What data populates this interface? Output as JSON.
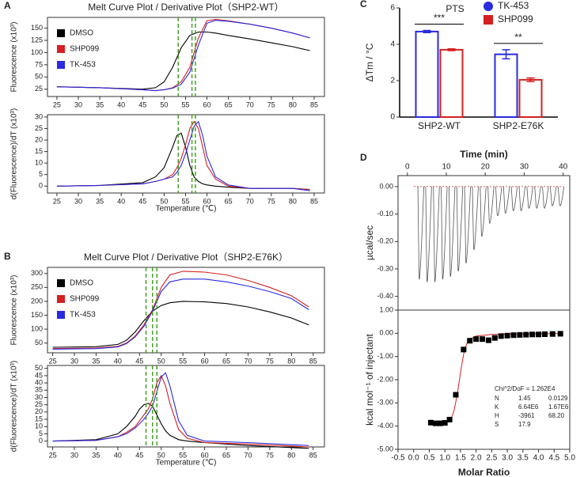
{
  "chart_data": [
    {
      "type": "line",
      "panel": "A",
      "title": "Melt Curve Plot / Derivative Plot（SHP2-WT）",
      "ylabel": "Fluorescence (x10³)",
      "frame": "box",
      "x": [
        25,
        35,
        45,
        48,
        50,
        52,
        54,
        56,
        58,
        60,
        62,
        65,
        70,
        75,
        80,
        84
      ],
      "series": [
        {
          "name": "DMSO",
          "color": "#000000",
          "values": [
            30,
            28,
            25,
            28,
            40,
            70,
            110,
            135,
            142,
            142,
            140,
            135,
            128,
            120,
            112,
            104
          ]
        },
        {
          "name": "SHP099",
          "color": "#d42020",
          "values": [
            30,
            28,
            24,
            22,
            24,
            28,
            40,
            70,
            130,
            165,
            168,
            165,
            158,
            150,
            140,
            130
          ]
        },
        {
          "name": "TK-453",
          "color": "#2a2ae0",
          "values": [
            30,
            28,
            24,
            22,
            24,
            27,
            35,
            60,
            115,
            160,
            166,
            164,
            158,
            150,
            140,
            130
          ]
        }
      ],
      "vlines": [
        53.3,
        56.5,
        57.3
      ],
      "vline_color": "#3a9a1a",
      "xlim": [
        22.8,
        87.4
      ],
      "xticks": [
        25,
        30,
        35,
        40,
        45,
        50,
        55,
        60,
        65,
        70,
        75,
        80,
        85
      ],
      "ylim": [
        10,
        172
      ],
      "yticks": [
        25,
        50,
        75,
        100,
        125,
        150
      ]
    },
    {
      "type": "line",
      "ylabel": "d(Fluorescence)/dT (x10³)",
      "xlabel": "Temperature (℃)",
      "frame": "box",
      "x": [
        25,
        35,
        45,
        48,
        50,
        52,
        53,
        54,
        55,
        56,
        57,
        58,
        59,
        60,
        62,
        65,
        70,
        80,
        84
      ],
      "series": [
        {
          "color": "#000000",
          "values": [
            0,
            0.3,
            1.5,
            4,
            8,
            17,
            22,
            23,
            17,
            9,
            4,
            2,
            1,
            0.5,
            0,
            -0.5,
            -1,
            -1,
            -1.5
          ]
        },
        {
          "color": "#d42020",
          "values": [
            0,
            0.3,
            1,
            2,
            3,
            5,
            8,
            12,
            18,
            25,
            28,
            25,
            17,
            9,
            3,
            0,
            -1,
            -1,
            -1.5
          ]
        },
        {
          "color": "#2a2ae0",
          "values": [
            0,
            0.3,
            1,
            2,
            3,
            4,
            6,
            9,
            14,
            20,
            26,
            28,
            22,
            13,
            4,
            0.5,
            -1,
            -1,
            -2
          ]
        }
      ],
      "vlines": [
        53.3,
        56.5,
        57.3
      ],
      "vline_color": "#3a9a1a",
      "xlim": [
        22.8,
        87.4
      ],
      "xticks": [
        25,
        30,
        35,
        40,
        45,
        50,
        55,
        60,
        65,
        70,
        75,
        80,
        85
      ],
      "ylim": [
        -3,
        31
      ],
      "yticks": [
        0,
        5,
        10,
        15,
        20,
        25,
        30
      ]
    },
    {
      "type": "line",
      "panel": "B",
      "title": "Melt Curve Plot / Derivative Plot（SHP2-E76K）",
      "ylabel": "Fluorescence (x10³)",
      "frame": "box",
      "x": [
        25,
        35,
        40,
        42,
        44,
        46,
        48,
        50,
        52,
        55,
        60,
        65,
        70,
        75,
        80,
        84
      ],
      "series": [
        {
          "name": "DMSO",
          "color": "#000000",
          "values": [
            35,
            37,
            45,
            60,
            90,
            130,
            165,
            185,
            195,
            200,
            198,
            192,
            180,
            162,
            140,
            115
          ]
        },
        {
          "name": "SHP099",
          "color": "#d42020",
          "values": [
            30,
            32,
            38,
            50,
            75,
            115,
            170,
            250,
            295,
            308,
            305,
            295,
            275,
            250,
            220,
            180
          ]
        },
        {
          "name": "TK-453",
          "color": "#2a2ae0",
          "values": [
            28,
            30,
            36,
            48,
            72,
            110,
            165,
            235,
            270,
            280,
            280,
            270,
            255,
            235,
            210,
            170
          ]
        }
      ],
      "vlines": [
        46.5,
        48,
        49
      ],
      "vline_color": "#3a9a1a",
      "xlim": [
        23.8,
        87.6
      ],
      "xticks": [
        25,
        30,
        35,
        40,
        45,
        50,
        55,
        60,
        65,
        70,
        75,
        80,
        85
      ],
      "ylim": [
        15,
        322
      ],
      "yticks": [
        50,
        100,
        150,
        200,
        250,
        300
      ]
    },
    {
      "type": "line",
      "ylabel": "d(Fluorescence)/dT (x10³)",
      "xlabel": "Temperature (℃)",
      "frame": "box",
      "x": [
        25,
        35,
        40,
        42,
        44,
        45,
        46,
        47,
        48,
        49,
        50,
        51,
        52,
        54,
        56,
        60,
        70,
        84
      ],
      "series": [
        {
          "color": "#000000",
          "values": [
            0,
            1,
            5,
            10,
            17,
            22,
            25,
            26,
            24,
            18,
            12,
            7,
            4,
            1,
            0,
            -1,
            -3,
            -5
          ]
        },
        {
          "color": "#d42020",
          "values": [
            0,
            0.5,
            3,
            6,
            10,
            14,
            18,
            22,
            29,
            40,
            45,
            38,
            26,
            8,
            2,
            -1,
            -2,
            -4
          ]
        },
        {
          "color": "#2a2ae0",
          "values": [
            0,
            0.5,
            3,
            5,
            9,
            12,
            15,
            19,
            24,
            34,
            44,
            47,
            38,
            14,
            4,
            0,
            -1,
            -3
          ]
        }
      ],
      "vlines": [
        46.5,
        48,
        49
      ],
      "vline_color": "#3a9a1a",
      "xlim": [
        23.8,
        87.6
      ],
      "xticks": [
        25,
        30,
        35,
        40,
        45,
        50,
        55,
        60,
        65,
        70,
        75,
        80,
        85
      ],
      "ylim": [
        -4,
        52
      ],
      "yticks": [
        0,
        5,
        10,
        15,
        20,
        25,
        30,
        35,
        40,
        45,
        50
      ]
    },
    {
      "type": "bar",
      "panel": "C",
      "title": "PTS",
      "ylabel": "ΔTm / °C",
      "frame": "open",
      "categories": [
        "SHP2-WT",
        "SHP2-E76K"
      ],
      "series": [
        {
          "name": "TK-453",
          "color": "#2a2ae0",
          "marker": "circle",
          "values": [
            4.7,
            3.45
          ],
          "errors": [
            0.06,
            0.25
          ]
        },
        {
          "name": "SHP099",
          "color": "#d42020",
          "marker": "square",
          "values": [
            3.7,
            2.05
          ],
          "errors": [
            0.05,
            0.1
          ]
        }
      ],
      "significance": [
        "***",
        "**"
      ],
      "ylim": [
        0,
        6
      ],
      "yticks": [
        0,
        2,
        4,
        6
      ]
    },
    {
      "type": "stem",
      "panel": "D",
      "xlabel": "Time (min)",
      "ylabel": "µcal/sec",
      "frame": "box",
      "xaxis": "top",
      "color": "#555555",
      "x": [
        3,
        5,
        7,
        9,
        11,
        13,
        15,
        17,
        19,
        21,
        23,
        25,
        27,
        29,
        31,
        33,
        35,
        37,
        39
      ],
      "values": [
        -0.33,
        -0.34,
        -0.34,
        -0.33,
        -0.32,
        -0.3,
        -0.27,
        -0.22,
        -0.17,
        -0.12,
        -0.09,
        -0.08,
        -0.07,
        -0.07,
        -0.06,
        -0.06,
        -0.06,
        -0.05,
        -0.05
      ],
      "xlim": [
        -2.4,
        41.7
      ],
      "xticks": [
        0,
        10,
        20,
        30,
        40
      ],
      "ylim": [
        -0.45,
        0.04
      ],
      "yticks": [
        {
          "value": 0,
          "label": "0.00"
        },
        {
          "value": -0.1,
          "label": "-0.10"
        },
        {
          "value": -0.2,
          "label": "-0.20"
        },
        {
          "value": -0.3,
          "label": "-0.30"
        },
        {
          "value": -0.4,
          "label": "-0.40"
        }
      ]
    },
    {
      "type": "scatter",
      "xlabel": "Molar Ratio",
      "ylabel": "kcal mol⁻¹ of injectant",
      "frame": "box",
      "color": "#000000",
      "x": [
        0.55,
        0.7,
        0.85,
        1.0,
        1.15,
        1.35,
        1.6,
        1.8,
        2.0,
        2.2,
        2.4,
        2.6,
        2.8,
        3.0,
        3.2,
        3.4,
        3.6,
        3.8,
        4.0,
        4.2,
        4.45,
        4.7
      ],
      "values": [
        -3.85,
        -3.88,
        -3.88,
        -3.86,
        -3.72,
        -2.65,
        -0.7,
        -0.32,
        -0.25,
        -0.25,
        -0.3,
        -0.2,
        -0.12,
        -0.1,
        -0.08,
        -0.07,
        -0.06,
        -0.05,
        -0.05,
        -0.04,
        -0.03,
        -0.02
      ],
      "fit": {
        "color": "#d42020",
        "x": [
          0.5,
          1.0,
          1.2,
          1.3,
          1.4,
          1.5,
          1.6,
          1.7,
          1.8,
          2.0,
          2.5,
          3,
          4,
          4.7
        ],
        "values": [
          -3.95,
          -3.9,
          -3.7,
          -3.3,
          -2.6,
          -1.7,
          -0.9,
          -0.45,
          -0.25,
          -0.12,
          -0.05,
          -0.03,
          -0.02,
          -0.01
        ]
      },
      "fit_params": {
        "title": "Chi^2/DoF = 1.262E4",
        "rows": [
          [
            "N",
            "1.45",
            "0.0129"
          ],
          [
            "K",
            "6.64E6",
            "1.67E6"
          ],
          [
            "H",
            "-3961",
            "68.20"
          ],
          [
            "S",
            "17.9"
          ]
        ]
      },
      "xlim": [
        -0.5,
        5.0
      ],
      "xticks": [
        -0.5,
        {
          "value": 0,
          "label": "0.0"
        },
        0.5,
        {
          "value": 1,
          "label": "1.0"
        },
        1.5,
        {
          "value": 2,
          "label": "2.0"
        },
        2.5,
        {
          "value": 3,
          "label": "3.0"
        },
        3.5,
        {
          "value": 4,
          "label": "4.0"
        },
        4.5,
        {
          "value": 5,
          "label": "5.0"
        }
      ],
      "ylim": [
        -5,
        1
      ],
      "yticks": [
        {
          "value": 1,
          "label": "1.00"
        },
        {
          "value": 0,
          "label": "0.00"
        },
        {
          "value": -1,
          "label": "-1.00"
        },
        {
          "value": -2,
          "label": "-2.00"
        },
        {
          "value": -3,
          "label": "-3.00"
        },
        {
          "value": -4,
          "label": "-4.00"
        },
        {
          "value": -5,
          "label": "-5.00"
        }
      ]
    }
  ]
}
